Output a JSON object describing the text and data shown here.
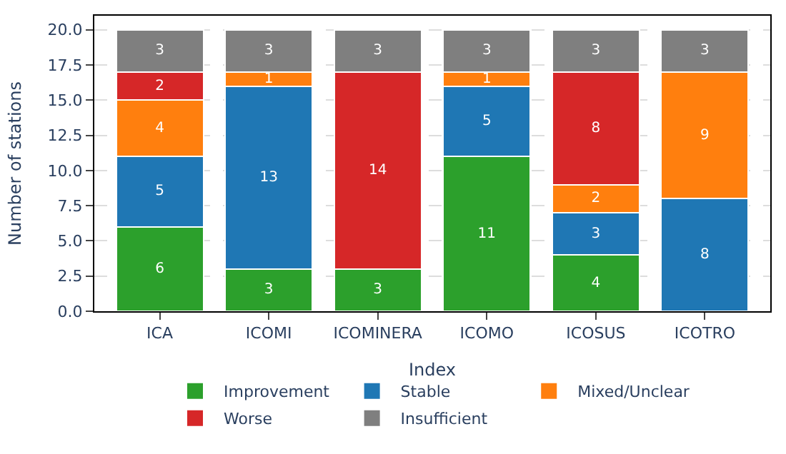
{
  "chart_data": {
    "type": "bar",
    "stacked": true,
    "xlabel": "Index",
    "ylabel": "Number of stations",
    "categories": [
      "ICA",
      "ICOMI",
      "ICOMINERA",
      "ICOMO",
      "ICOSUS",
      "ICOTRO"
    ],
    "series": [
      {
        "name": "Improvement",
        "color": "#2ca02c",
        "values": [
          6,
          3,
          3,
          11,
          4,
          0
        ],
        "value_labels": [
          "6",
          "3",
          "3",
          "11",
          "4",
          null
        ]
      },
      {
        "name": "Stable",
        "color": "#1f77b4",
        "values": [
          5,
          13,
          0,
          5,
          3,
          8
        ],
        "value_labels": [
          "5",
          "13",
          null,
          "5",
          "3",
          "8"
        ]
      },
      {
        "name": "Mixed/Unclear",
        "color": "#ff7f0e",
        "values": [
          4,
          1,
          0,
          1,
          2,
          9
        ],
        "value_labels": [
          "4",
          "1",
          null,
          "1",
          "2",
          "9"
        ]
      },
      {
        "name": "Worse",
        "color": "#d62728",
        "values": [
          2,
          0,
          14,
          0,
          8,
          0
        ],
        "value_labels": [
          "2",
          null,
          "14",
          null,
          "8",
          null
        ]
      },
      {
        "name": "Insufficient",
        "color": "#7f7f7f",
        "values": [
          3,
          3,
          3,
          3,
          3,
          3
        ],
        "value_labels": [
          "3",
          "3",
          "3",
          "3",
          "3",
          "3"
        ]
      }
    ],
    "ylim": [
      0,
      21
    ],
    "yticks": [
      {
        "value": 0,
        "label": "0.0"
      },
      {
        "value": 2.5,
        "label": "2.5"
      },
      {
        "value": 5,
        "label": "5.0"
      },
      {
        "value": 7.5,
        "label": "7.5"
      },
      {
        "value": 10,
        "label": "10.0"
      },
      {
        "value": 12.5,
        "label": "12.5"
      },
      {
        "value": 15,
        "label": "15.0"
      },
      {
        "value": 17.5,
        "label": "17.5"
      },
      {
        "value": 20,
        "label": "20.0"
      }
    ],
    "grid": "y",
    "legend": "bottom"
  }
}
